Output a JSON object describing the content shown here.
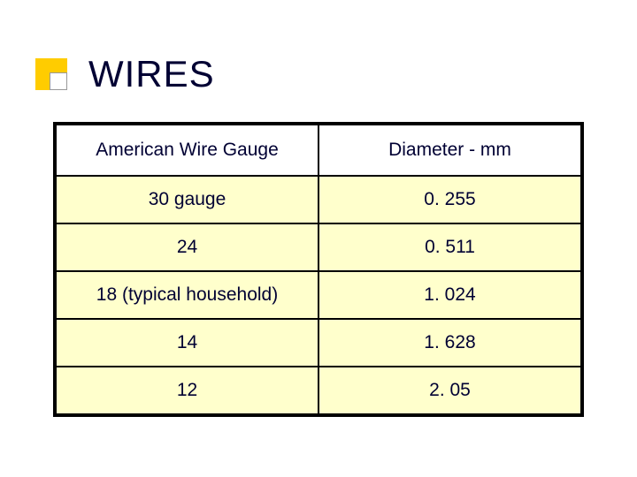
{
  "slide": {
    "title": "WIRES",
    "title_color": "#000033",
    "title_fontsize": 42,
    "bullet_color": "#ffcc00",
    "background_color": "#ffffff"
  },
  "table": {
    "type": "table",
    "border_color": "#000000",
    "border_width": 2,
    "header_bg": "#ffffff",
    "data_bg": "#ffffcc",
    "text_color": "#000033",
    "font_size": 21,
    "columns": [
      {
        "label": "American Wire Gauge",
        "width_pct": 50,
        "align": "center"
      },
      {
        "label": "Diameter - mm",
        "width_pct": 50,
        "align": "center"
      }
    ],
    "rows": [
      {
        "gauge": "30 gauge",
        "diameter": "0. 255"
      },
      {
        "gauge": "24",
        "diameter": "0. 511"
      },
      {
        "gauge": "18 (typical household)",
        "diameter": "1. 024"
      },
      {
        "gauge": "14",
        "diameter": "1. 628"
      },
      {
        "gauge": "12",
        "diameter": "2. 05"
      }
    ]
  }
}
